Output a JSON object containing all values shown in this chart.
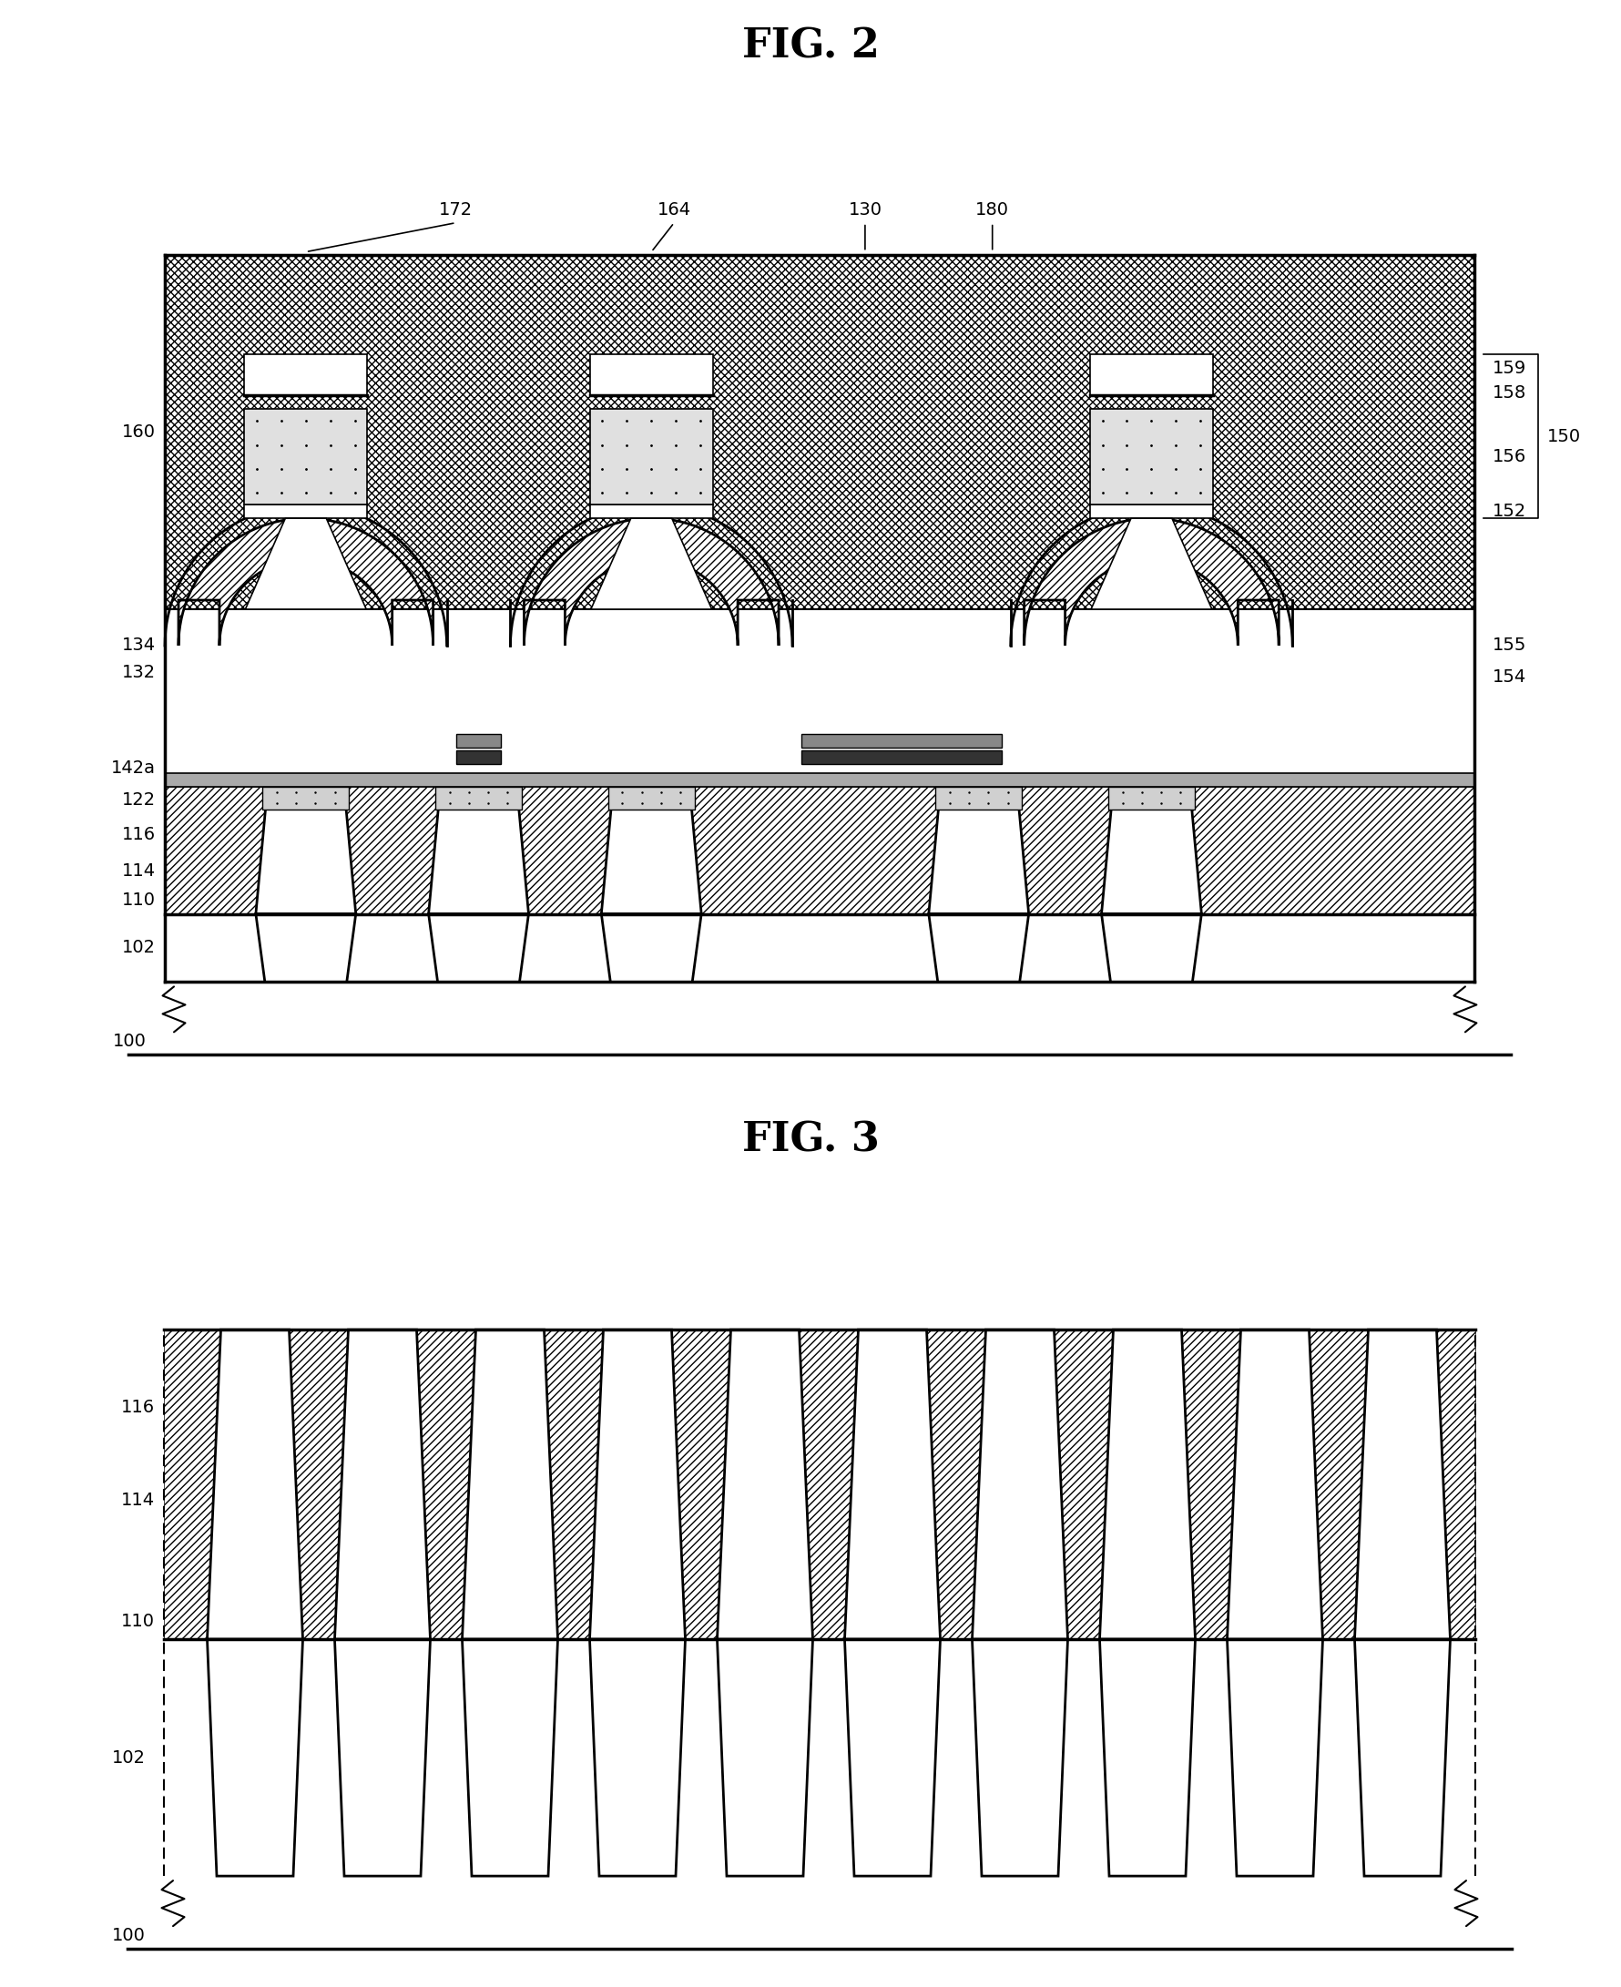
{
  "fig2_title": "FIG. 2",
  "fig3_title": "FIG. 3",
  "bg_color": "#ffffff",
  "lw_main": 2.0,
  "lw_thick": 2.5,
  "lw_thin": 1.2,
  "fontsize_title": 32,
  "fontsize_label": 14
}
